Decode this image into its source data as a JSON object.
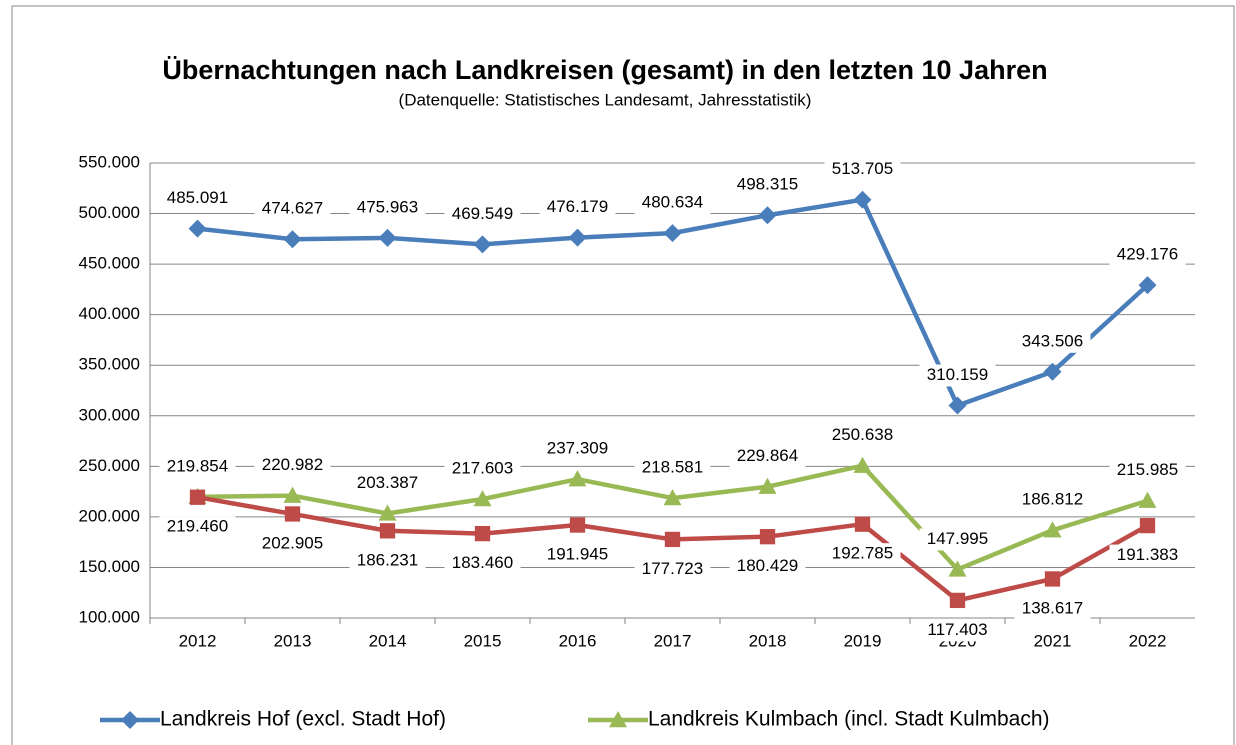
{
  "chart_data": {
    "type": "line",
    "title": "Übernachtungen nach Landkreisen (gesamt) in den letzten 10 Jahren",
    "subtitle": "(Datenquelle: Statistisches Landesamt, Jahresstatistik)",
    "categories": [
      "2012",
      "2013",
      "2014",
      "2015",
      "2016",
      "2017",
      "2018",
      "2019",
      "2020",
      "2021",
      "2022"
    ],
    "series": [
      {
        "name": "Landkreis Hof (excl. Stadt Hof)",
        "color": "#4a7ebb",
        "marker": "diamond",
        "values": [
          485091,
          474627,
          475963,
          469549,
          476179,
          480634,
          498315,
          513705,
          310159,
          343506,
          429176
        ],
        "value_labels": [
          "485.091",
          "474.627",
          "475.963",
          "469.549",
          "476.179",
          "480.634",
          "498.315",
          "513.705",
          "310.159",
          "343.506",
          "429.176"
        ]
      },
      {
        "name": "Landkreis Kulmbach (incl. Stadt Kulmbach)",
        "color": "#98b954",
        "marker": "triangle",
        "values": [
          219854,
          220982,
          203387,
          217603,
          237309,
          218581,
          229864,
          250638,
          147995,
          186812,
          215985
        ],
        "value_labels": [
          "219.854",
          "220.982",
          "203.387",
          "217.603",
          "237.309",
          "218.581",
          "229.864",
          "250.638",
          "147.995",
          "186.812",
          "215.985"
        ]
      },
      {
        "color": "#be4b48",
        "marker": "square",
        "values": [
          219460,
          202905,
          186231,
          183460,
          191945,
          177723,
          180429,
          192785,
          117403,
          138617,
          191383
        ],
        "value_labels": [
          "219.460",
          "202.905",
          "186.231",
          "183.460",
          "191.945",
          "177.723",
          "180.429",
          "192.785",
          "117.403",
          "138.617",
          "191.383"
        ]
      }
    ],
    "ylim": [
      100000,
      550000
    ],
    "yticks": [
      {
        "value": 100000,
        "label": "100.000"
      },
      {
        "value": 150000,
        "label": "150.000"
      },
      {
        "value": 200000,
        "label": "200.000"
      },
      {
        "value": 250000,
        "label": "250.000"
      },
      {
        "value": 300000,
        "label": "300.000"
      },
      {
        "value": 350000,
        "label": "350.000"
      },
      {
        "value": 400000,
        "label": "400.000"
      },
      {
        "value": 450000,
        "label": "450.000"
      },
      {
        "value": 500000,
        "label": "500.000"
      },
      {
        "value": 550000,
        "label": "550.000"
      }
    ],
    "grid": true
  }
}
